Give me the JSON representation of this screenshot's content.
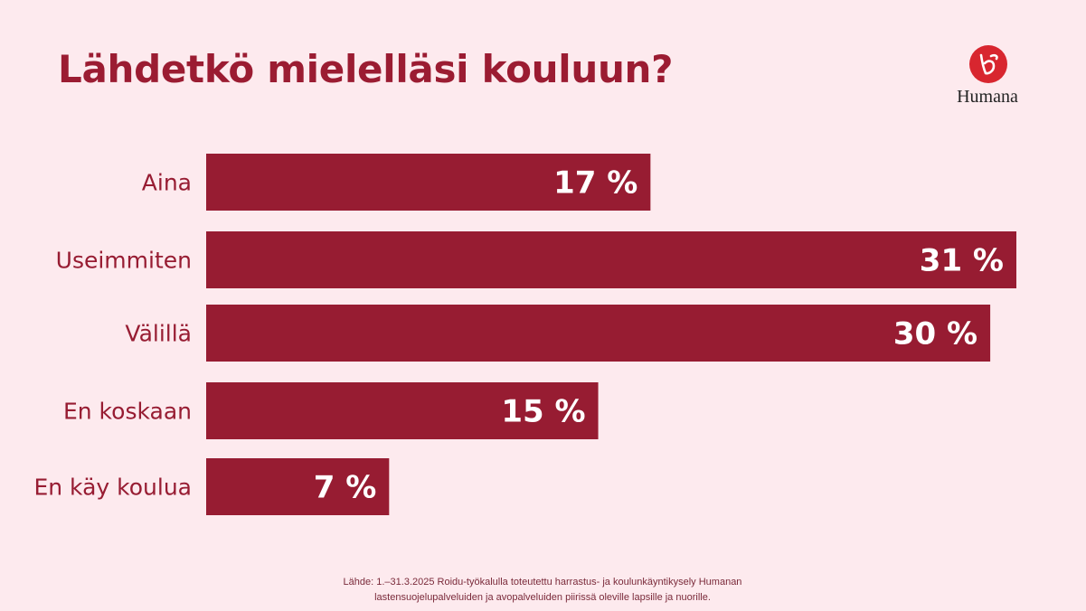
{
  "brand": {
    "name": "Humana",
    "color": "#d8262f"
  },
  "source": {
    "line1": "Lähde: 1.–31.3.2025 Roidu-työkalulla toteutettu harrastus- ja koulunkäyntikysely Humanan",
    "line2": "lastensuojelupalveluiden ja avopalveluiden piirissä oleville lapsille ja nuorille."
  },
  "chart_data": {
    "type": "bar",
    "orientation": "horizontal",
    "title": "Lähdetkö mielelläsi kouluun?",
    "categories": [
      "Aina",
      "Useimmiten",
      "Välillä",
      "En koskaan",
      "En käy koulua"
    ],
    "values": [
      17,
      31,
      30,
      15,
      7
    ],
    "labels": [
      "17 %",
      "31 %",
      "30 %",
      "15 %",
      "7 %"
    ],
    "xlim": [
      0,
      31
    ],
    "grid": false,
    "legend": "none",
    "bar_color": "#971c32",
    "label_color": "#ffffff",
    "category_color": "#971c32"
  }
}
